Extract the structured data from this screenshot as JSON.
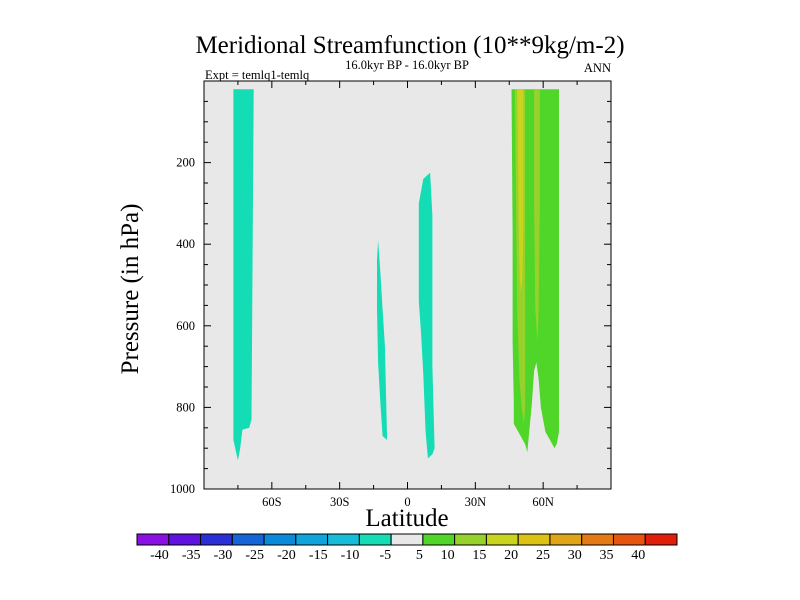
{
  "chart_data": {
    "type": "contour",
    "title": "Meridional Streamfunction (10**9kg/m-2)",
    "subtitle_left": "Expt = temlq1-temlq",
    "subtitle_center": "16.0kyr BP - 16.0kyr BP",
    "subtitle_right": "ANN",
    "xlabel": "Latitude",
    "ylabel": "Pressure (in hPa)",
    "xlim": [
      -90,
      90
    ],
    "ylim": [
      0,
      1000
    ],
    "y_inverted": true,
    "x_ticks": [
      {
        "value": -60,
        "label": "60S"
      },
      {
        "value": -30,
        "label": "30S"
      },
      {
        "value": 0,
        "label": "0"
      },
      {
        "value": 30,
        "label": "30N"
      },
      {
        "value": 60,
        "label": "60N"
      }
    ],
    "y_ticks": [
      {
        "value": 200,
        "label": "200"
      },
      {
        "value": 400,
        "label": "400"
      },
      {
        "value": 600,
        "label": "600"
      },
      {
        "value": 800,
        "label": "800"
      },
      {
        "value": 1000,
        "label": "1000"
      }
    ],
    "background_color": "#e8e8e8",
    "regions": [
      {
        "name": "southern-band",
        "level": -5,
        "color": "#14dcb4",
        "outline": [
          [
            -77,
            20
          ],
          [
            -68,
            20
          ],
          [
            -69,
            830
          ],
          [
            -70,
            850
          ],
          [
            -73,
            855
          ],
          [
            -74,
            900
          ],
          [
            -75,
            930
          ],
          [
            -77,
            880
          ],
          [
            -77,
            720
          ]
        ]
      },
      {
        "name": "tropical-band-south",
        "level": -5,
        "color": "#14dcb4",
        "outline": [
          [
            -13,
            390
          ],
          [
            -12,
            470
          ],
          [
            -11,
            560
          ],
          [
            -10,
            650
          ],
          [
            -9,
            880
          ],
          [
            -11,
            870
          ],
          [
            -12,
            790
          ],
          [
            -13,
            690
          ],
          [
            -13.5,
            560
          ],
          [
            -13.5,
            440
          ]
        ]
      },
      {
        "name": "tropical-band-north",
        "level": -5,
        "color": "#14dcb4",
        "outline": [
          [
            10,
            225
          ],
          [
            11,
            330
          ],
          [
            11,
            500
          ],
          [
            11,
            700
          ],
          [
            12,
            900
          ],
          [
            11,
            915
          ],
          [
            9,
            925
          ],
          [
            8,
            860
          ],
          [
            7,
            720
          ],
          [
            6,
            620
          ],
          [
            5,
            540
          ],
          [
            5,
            420
          ],
          [
            5,
            300
          ],
          [
            7,
            240
          ]
        ]
      },
      {
        "name": "northern-band-outer",
        "level": 5,
        "color": "#4fd629",
        "outline": [
          [
            46,
            20
          ],
          [
            67,
            20
          ],
          [
            67,
            530
          ],
          [
            67,
            860
          ],
          [
            66,
            890
          ],
          [
            65,
            900
          ],
          [
            63,
            880
          ],
          [
            61,
            860
          ],
          [
            59,
            800
          ],
          [
            58,
            730
          ],
          [
            57,
            690
          ],
          [
            56,
            710
          ],
          [
            55,
            790
          ],
          [
            54,
            850
          ],
          [
            53,
            910
          ],
          [
            52,
            890
          ],
          [
            49,
            860
          ],
          [
            47,
            840
          ],
          [
            47,
            790
          ],
          [
            46.5,
            640
          ],
          [
            46.5,
            370
          ]
        ]
      },
      {
        "name": "northern-core-west",
        "level": 10,
        "color": "#97d22c",
        "outline": [
          [
            47.5,
            20
          ],
          [
            52,
            20
          ],
          [
            52,
            540
          ],
          [
            52,
            800
          ],
          [
            51.5,
            840
          ],
          [
            50.5,
            800
          ],
          [
            49.5,
            730
          ],
          [
            48.5,
            560
          ],
          [
            48,
            300
          ]
        ]
      },
      {
        "name": "northern-core-east",
        "level": 10,
        "color": "#97d22c",
        "outline": [
          [
            56,
            20
          ],
          [
            58.5,
            20
          ],
          [
            58.5,
            300
          ],
          [
            58,
            560
          ],
          [
            57.5,
            640
          ],
          [
            56.5,
            560
          ],
          [
            56,
            300
          ]
        ]
      },
      {
        "name": "northern-peak",
        "level": 15,
        "color": "#c8d41e",
        "outline": [
          [
            48.5,
            20
          ],
          [
            51.2,
            20
          ],
          [
            51.2,
            360
          ],
          [
            50.8,
            480
          ],
          [
            50.2,
            520
          ],
          [
            49.6,
            480
          ],
          [
            49.2,
            360
          ]
        ]
      }
    ],
    "colorbar": {
      "levels": [
        "-40",
        "-35",
        "-30",
        "-25",
        "-20",
        "-15",
        "-10",
        "-5",
        "5",
        "10",
        "15",
        "20",
        "25",
        "30",
        "35",
        "40"
      ],
      "colors": [
        "#8a10e3",
        "#5f12e0",
        "#2a2fd6",
        "#1565d6",
        "#0a8ad8",
        "#10a4dc",
        "#16bcd8",
        "#14dcb4",
        "#e8e8e8",
        "#4fd629",
        "#97d22c",
        "#c8d41e",
        "#dcc313",
        "#e0a516",
        "#e37a14",
        "#e6540f",
        "#e01e0a"
      ]
    }
  }
}
